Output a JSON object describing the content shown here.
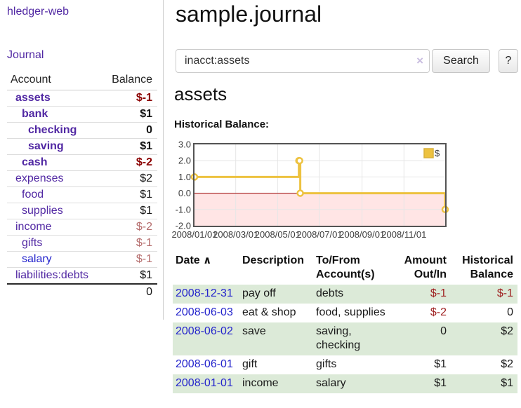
{
  "sidebar": {
    "app_title": "hledger-web",
    "journal_link": "Journal",
    "accounts_table": {
      "account_header": "Account",
      "balance_header": "Balance",
      "rows": [
        {
          "label": "assets",
          "indent": 0,
          "bold": true,
          "link_color": "purple",
          "balance": "$-1",
          "balance_color": "neg-strong"
        },
        {
          "label": "bank",
          "indent": 1,
          "bold": true,
          "link_color": "purple",
          "balance": "$1",
          "balance_color": "pos"
        },
        {
          "label": "checking",
          "indent": 2,
          "bold": true,
          "link_color": "purple",
          "balance": "0",
          "balance_color": "pos"
        },
        {
          "label": "saving",
          "indent": 2,
          "bold": true,
          "link_color": "purple",
          "balance": "$1",
          "balance_color": "pos"
        },
        {
          "label": "cash",
          "indent": 1,
          "bold": true,
          "link_color": "purple",
          "balance": "$-2",
          "balance_color": "neg-strong"
        },
        {
          "label": "expenses",
          "indent": 0,
          "bold": false,
          "link_color": "purple",
          "balance": "$2",
          "balance_color": "pos"
        },
        {
          "label": "food",
          "indent": 1,
          "bold": false,
          "link_color": "purple",
          "balance": "$1",
          "balance_color": "pos"
        },
        {
          "label": "supplies",
          "indent": 1,
          "bold": false,
          "link_color": "purple",
          "balance": "$1",
          "balance_color": "pos"
        },
        {
          "label": "income",
          "indent": 0,
          "bold": false,
          "link_color": "purple",
          "balance": "$-2",
          "balance_color": "neg-dim"
        },
        {
          "label": "gifts",
          "indent": 1,
          "bold": false,
          "link_color": "purple",
          "balance": "$-1",
          "balance_color": "neg-dim"
        },
        {
          "label": "salary",
          "indent": 1,
          "bold": false,
          "link_color": "blue",
          "balance": "$-1",
          "balance_color": "neg-dim"
        },
        {
          "label": "liabilities:debts",
          "indent": 0,
          "bold": false,
          "link_color": "purple",
          "balance": "$1",
          "balance_color": "pos"
        }
      ],
      "total": "0"
    }
  },
  "main": {
    "title": "sample.journal",
    "search": {
      "value": "inacct:assets",
      "clear_icon": "×",
      "search_button_label": "Search",
      "help_button_label": "?"
    },
    "account_heading": "assets",
    "chart_title": "Historical Balance:"
  },
  "chart_data": {
    "type": "line",
    "step": true,
    "title": "Historical Balance:",
    "series": [
      {
        "name": "$",
        "color": "#edc240",
        "points": [
          [
            "2008-01-01",
            1
          ],
          [
            "2008-06-01",
            2
          ],
          [
            "2008-06-02",
            2
          ],
          [
            "2008-06-03",
            0
          ],
          [
            "2008-12-31",
            -1
          ]
        ]
      }
    ],
    "x_range": [
      "2008-01-01",
      "2008-12-31"
    ],
    "x_ticks": [
      "2008/01/01",
      "2008/03/01",
      "2008/05/01",
      "2008/07/01",
      "2008/09/01",
      "2008/11/01"
    ],
    "y_ticks": [
      "3.0",
      "2.0",
      "1.0",
      "0.0",
      "-1.0",
      "-2.0"
    ],
    "y_range": [
      -2,
      3
    ],
    "grid": true,
    "legend": {
      "label": "$",
      "position": "top-right"
    },
    "colors": {
      "grid": "#e6e6e6",
      "zero_line": "#990000",
      "negative_region_fill": "rgba(255,0,0,0.10)",
      "frame": "#545454",
      "marker_fill": "#ffffff"
    }
  },
  "register": {
    "headers": [
      "Date",
      "Description",
      "To/From Account(s)",
      "Amount Out/In",
      "Historical Balance"
    ],
    "sort_icon": "∧",
    "rows": [
      {
        "date": "2008-12-31",
        "description": "pay off",
        "accounts": "debts",
        "amount": "$-1",
        "balance": "$-1",
        "amount_negative": true,
        "balance_negative": true
      },
      {
        "date": "2008-06-03",
        "description": "eat & shop",
        "accounts": "food, supplies",
        "amount": "$-2",
        "balance": "0",
        "amount_negative": true,
        "balance_negative": false
      },
      {
        "date": "2008-06-02",
        "description": "save",
        "accounts": "saving, checking",
        "amount": "0",
        "balance": "$2",
        "amount_negative": false,
        "balance_negative": false
      },
      {
        "date": "2008-06-01",
        "description": "gift",
        "accounts": "gifts",
        "amount": "$1",
        "balance": "$2",
        "amount_negative": false,
        "balance_negative": false
      },
      {
        "date": "2008-01-01",
        "description": "income",
        "accounts": "salary",
        "amount": "$1",
        "balance": "$1",
        "amount_negative": false,
        "balance_negative": false
      }
    ]
  }
}
